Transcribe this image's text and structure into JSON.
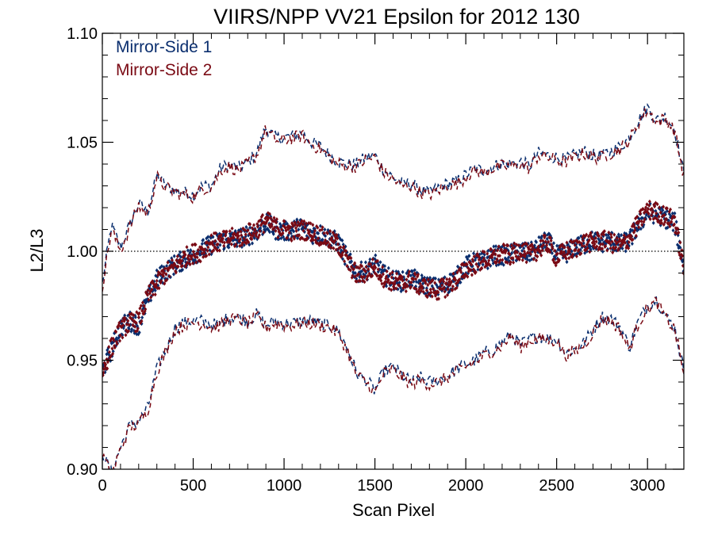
{
  "chart_data": {
    "type": "line",
    "title": "VIIRS/NPP VV21 Epsilon for 2012 130",
    "xlabel": "Scan Pixel",
    "ylabel": "L2/L3",
    "xlim": [
      0,
      3200
    ],
    "ylim": [
      0.9,
      1.1
    ],
    "x_ticks": [
      0,
      500,
      1000,
      1500,
      2000,
      2500,
      3000
    ],
    "x_tick_labels": [
      "0",
      "500",
      "1000",
      "1500",
      "2000",
      "2500",
      "3000"
    ],
    "y_ticks": [
      0.9,
      0.95,
      1.0,
      1.05,
      1.1
    ],
    "y_tick_labels": [
      "0.90",
      "0.95",
      "1.00",
      "1.05",
      "1.10"
    ],
    "grid": false,
    "legend_position": "top-left",
    "reference_line": {
      "y": 1.0,
      "style": "dotted"
    },
    "x": [
      0,
      50,
      100,
      150,
      200,
      250,
      300,
      350,
      400,
      450,
      500,
      550,
      600,
      650,
      700,
      750,
      800,
      850,
      900,
      950,
      1000,
      1050,
      1100,
      1150,
      1200,
      1250,
      1300,
      1350,
      1400,
      1450,
      1500,
      1550,
      1600,
      1650,
      1700,
      1750,
      1800,
      1850,
      1900,
      1950,
      2000,
      2050,
      2100,
      2150,
      2200,
      2250,
      2300,
      2350,
      2400,
      2450,
      2500,
      2550,
      2600,
      2650,
      2700,
      2750,
      2800,
      2850,
      2900,
      2950,
      3000,
      3050,
      3100,
      3150,
      3200
    ],
    "series": [
      {
        "name": "Mirror-Side 1",
        "color": "#0a2e6e",
        "mean": [
          0.945,
          0.955,
          0.965,
          0.968,
          0.966,
          0.978,
          0.987,
          0.991,
          0.994,
          0.996,
          0.998,
          1.001,
          1.003,
          1.005,
          1.005,
          1.006,
          1.007,
          1.009,
          1.013,
          1.01,
          1.009,
          1.01,
          1.011,
          1.008,
          1.008,
          1.006,
          1.004,
          0.996,
          0.99,
          0.991,
          0.994,
          0.989,
          0.987,
          0.986,
          0.988,
          0.985,
          0.984,
          0.983,
          0.985,
          0.988,
          0.993,
          0.995,
          0.995,
          0.998,
          0.998,
          0.999,
          1.0,
          0.999,
          1.002,
          1.005,
          0.998,
          0.999,
          1.002,
          1.003,
          1.005,
          1.004,
          1.005,
          1.003,
          1.005,
          1.012,
          1.018,
          1.017,
          1.015,
          1.013,
          0.993
        ],
        "upper": [
          0.985,
          1.012,
          1.002,
          1.012,
          1.022,
          1.018,
          1.035,
          1.03,
          1.028,
          1.027,
          1.026,
          1.03,
          1.03,
          1.038,
          1.04,
          1.038,
          1.041,
          1.045,
          1.057,
          1.052,
          1.052,
          1.053,
          1.054,
          1.05,
          1.048,
          1.044,
          1.041,
          1.04,
          1.04,
          1.043,
          1.044,
          1.037,
          1.034,
          1.031,
          1.031,
          1.028,
          1.027,
          1.029,
          1.031,
          1.032,
          1.035,
          1.038,
          1.037,
          1.039,
          1.04,
          1.04,
          1.041,
          1.039,
          1.045,
          1.044,
          1.043,
          1.042,
          1.044,
          1.046,
          1.044,
          1.044,
          1.046,
          1.048,
          1.052,
          1.06,
          1.066,
          1.06,
          1.062,
          1.056,
          1.035
        ],
        "lower": [
          0.908,
          0.898,
          0.91,
          0.92,
          0.922,
          0.928,
          0.946,
          0.955,
          0.965,
          0.967,
          0.968,
          0.968,
          0.966,
          0.967,
          0.97,
          0.97,
          0.968,
          0.971,
          0.966,
          0.968,
          0.967,
          0.967,
          0.968,
          0.968,
          0.967,
          0.966,
          0.963,
          0.955,
          0.944,
          0.941,
          0.936,
          0.945,
          0.947,
          0.943,
          0.94,
          0.942,
          0.94,
          0.941,
          0.943,
          0.946,
          0.948,
          0.95,
          0.953,
          0.955,
          0.958,
          0.962,
          0.957,
          0.96,
          0.961,
          0.96,
          0.96,
          0.953,
          0.955,
          0.958,
          0.964,
          0.97,
          0.969,
          0.965,
          0.956,
          0.968,
          0.975,
          0.978,
          0.97,
          0.965,
          0.945
        ]
      },
      {
        "name": "Mirror-Side 2",
        "color": "#7a0a14",
        "mean": [
          0.944,
          0.956,
          0.964,
          0.967,
          0.968,
          0.979,
          0.985,
          0.99,
          0.993,
          0.997,
          0.999,
          1.0,
          1.004,
          1.004,
          1.006,
          1.006,
          1.008,
          1.01,
          1.014,
          1.011,
          1.01,
          1.009,
          1.01,
          1.009,
          1.007,
          1.005,
          1.003,
          0.995,
          0.989,
          0.99,
          0.993,
          0.988,
          0.986,
          0.985,
          0.987,
          0.984,
          0.983,
          0.982,
          0.984,
          0.987,
          0.992,
          0.994,
          0.996,
          0.997,
          0.999,
          0.998,
          1.001,
          0.998,
          1.001,
          1.004,
          0.997,
          1.0,
          1.001,
          1.004,
          1.004,
          1.005,
          1.004,
          1.002,
          1.006,
          1.013,
          1.019,
          1.018,
          1.016,
          1.014,
          0.992
        ],
        "upper": [
          0.984,
          1.01,
          1.0,
          1.011,
          1.021,
          1.017,
          1.034,
          1.029,
          1.027,
          1.026,
          1.025,
          1.029,
          1.029,
          1.037,
          1.039,
          1.037,
          1.04,
          1.044,
          1.056,
          1.051,
          1.051,
          1.052,
          1.053,
          1.049,
          1.047,
          1.043,
          1.04,
          1.039,
          1.039,
          1.042,
          1.043,
          1.036,
          1.033,
          1.03,
          1.03,
          1.027,
          1.026,
          1.028,
          1.03,
          1.031,
          1.034,
          1.037,
          1.036,
          1.038,
          1.039,
          1.039,
          1.04,
          1.038,
          1.044,
          1.043,
          1.042,
          1.041,
          1.043,
          1.045,
          1.043,
          1.043,
          1.045,
          1.047,
          1.051,
          1.059,
          1.065,
          1.059,
          1.061,
          1.055,
          1.034
        ],
        "lower": [
          0.907,
          0.897,
          0.909,
          0.919,
          0.921,
          0.927,
          0.945,
          0.954,
          0.964,
          0.966,
          0.967,
          0.967,
          0.965,
          0.966,
          0.969,
          0.969,
          0.967,
          0.97,
          0.965,
          0.967,
          0.966,
          0.966,
          0.967,
          0.967,
          0.966,
          0.965,
          0.962,
          0.954,
          0.943,
          0.94,
          0.935,
          0.944,
          0.946,
          0.942,
          0.939,
          0.941,
          0.939,
          0.94,
          0.942,
          0.945,
          0.947,
          0.949,
          0.952,
          0.954,
          0.957,
          0.961,
          0.956,
          0.959,
          0.96,
          0.959,
          0.959,
          0.952,
          0.954,
          0.957,
          0.963,
          0.969,
          0.968,
          0.964,
          0.955,
          0.967,
          0.974,
          0.977,
          0.969,
          0.964,
          0.944
        ]
      }
    ]
  }
}
